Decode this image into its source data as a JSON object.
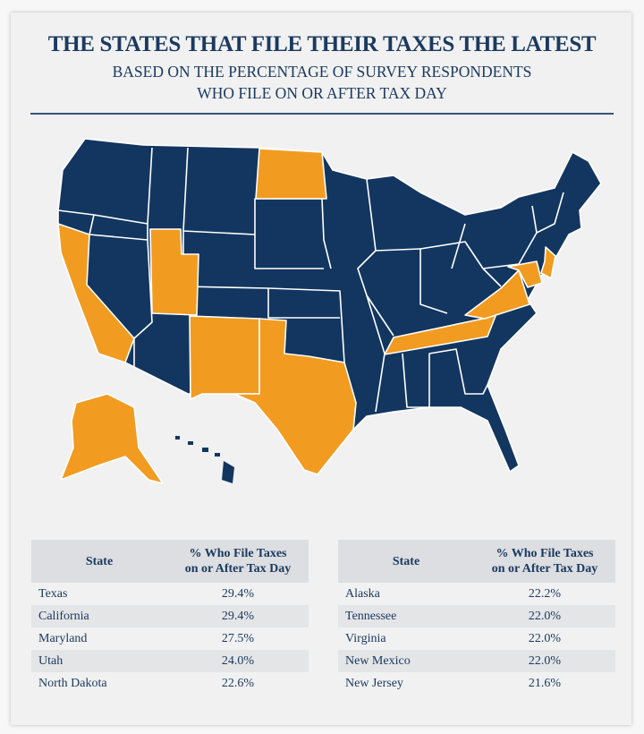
{
  "header": {
    "title": "THE STATES THAT FILE THEIR TAXES THE LATEST",
    "subtitle_line1": "BASED ON THE PERCENTAGE OF SURVEY RESPONDENTS",
    "subtitle_line2": "WHO FILE ON OR AFTER TAX DAY"
  },
  "map": {
    "highlight_color": "#f29b21",
    "base_color": "#12365f",
    "highlighted_states": [
      "Texas",
      "California",
      "Maryland",
      "Utah",
      "North Dakota",
      "Alaska",
      "Tennessee",
      "Virginia",
      "New Mexico",
      "New Jersey"
    ]
  },
  "tables": [
    {
      "col_state": "State",
      "col_pct_line1": "% Who File Taxes",
      "col_pct_line2": "on or After Tax Day",
      "rows": [
        {
          "state": "Texas",
          "pct": "29.4%"
        },
        {
          "state": "California",
          "pct": "29.4%"
        },
        {
          "state": "Maryland",
          "pct": "27.5%"
        },
        {
          "state": "Utah",
          "pct": "24.0%"
        },
        {
          "state": "North Dakota",
          "pct": "22.6%"
        }
      ]
    },
    {
      "col_state": "State",
      "col_pct_line1": "% Who File Taxes",
      "col_pct_line2": "on or After Tax Day",
      "rows": [
        {
          "state": "Alaska",
          "pct": "22.2%"
        },
        {
          "state": "Tennessee",
          "pct": "22.0%"
        },
        {
          "state": "Virginia",
          "pct": "22.0%"
        },
        {
          "state": "New Mexico",
          "pct": "22.0%"
        },
        {
          "state": "New Jersey",
          "pct": "21.6%"
        }
      ]
    }
  ]
}
